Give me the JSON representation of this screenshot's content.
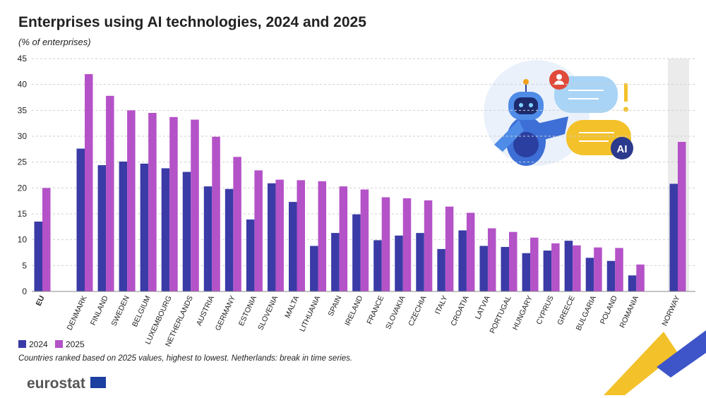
{
  "chart_data": {
    "type": "bar",
    "title": "Enterprises using AI technologies, 2024 and 2025",
    "subtitle": "(% of enterprises)",
    "categories": [
      "EU",
      "DENMARK",
      "FINLAND",
      "SWEDEN",
      "BELGIUM",
      "LUXEMBOURG",
      "NETHERLANDS",
      "AUSTRIA",
      "GERMANY",
      "ESTONIA",
      "SLOVENIA",
      "MALTA",
      "LITHUANIA",
      "SPAIN",
      "IRELAND",
      "FRANCE",
      "SLOVAKIA",
      "CZECHIA",
      "ITALY",
      "CROATIA",
      "LATVIA",
      "PORTUGAL",
      "HUNGARY",
      "CYPRUS",
      "GREECE",
      "BULGARIA",
      "POLAND",
      "ROMANIA",
      "NORWAY"
    ],
    "series": [
      {
        "name": "2024",
        "color": "#3a3ba6",
        "values": [
          13.5,
          27.6,
          24.4,
          25.1,
          24.7,
          23.8,
          23.1,
          20.3,
          19.8,
          13.9,
          20.9,
          17.3,
          8.8,
          11.3,
          14.9,
          9.9,
          10.8,
          11.3,
          8.2,
          11.8,
          8.8,
          8.6,
          7.4,
          7.9,
          9.8,
          6.5,
          5.9,
          3.1,
          20.8
        ]
      },
      {
        "name": "2025",
        "color": "#b452c8",
        "values": [
          20.0,
          42.0,
          37.8,
          35.0,
          34.5,
          33.7,
          33.2,
          29.9,
          26.0,
          23.4,
          21.6,
          21.5,
          21.3,
          20.3,
          19.7,
          18.2,
          18.0,
          17.6,
          16.4,
          15.2,
          12.2,
          11.5,
          10.4,
          9.3,
          8.9,
          8.5,
          8.4,
          5.2,
          28.9
        ]
      }
    ],
    "ylim": [
      0,
      45
    ],
    "yticks": [
      0,
      5,
      10,
      15,
      20,
      25,
      30,
      35,
      40,
      45
    ],
    "grid": true,
    "legend": "bottom-left",
    "note": "Countries ranked based on 2025 values, highest to lowest. Netherlands: break in time series."
  },
  "logo": "eurostat"
}
